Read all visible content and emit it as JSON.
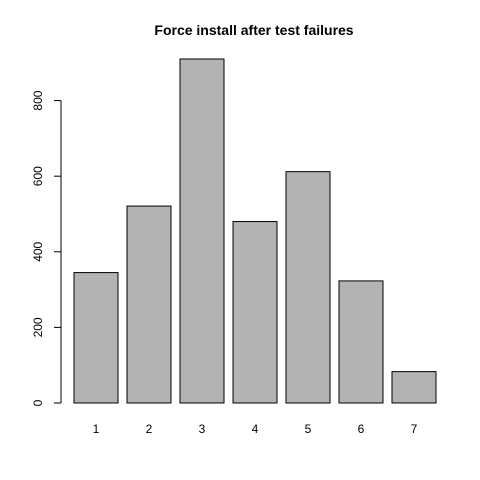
{
  "chart_data": {
    "type": "bar",
    "title": "Force install after test failures",
    "xlabel": "",
    "ylabel": "",
    "categories": [
      "1",
      "2",
      "3",
      "4",
      "5",
      "6",
      "7"
    ],
    "values": [
      345,
      521,
      910,
      480,
      612,
      323,
      83
    ],
    "ylim": [
      0,
      910
    ],
    "yticks": [
      0,
      200,
      400,
      600,
      800
    ],
    "grid": false,
    "legend": "none",
    "bar_color": "#b3b3b3",
    "border_color": "#000000"
  }
}
